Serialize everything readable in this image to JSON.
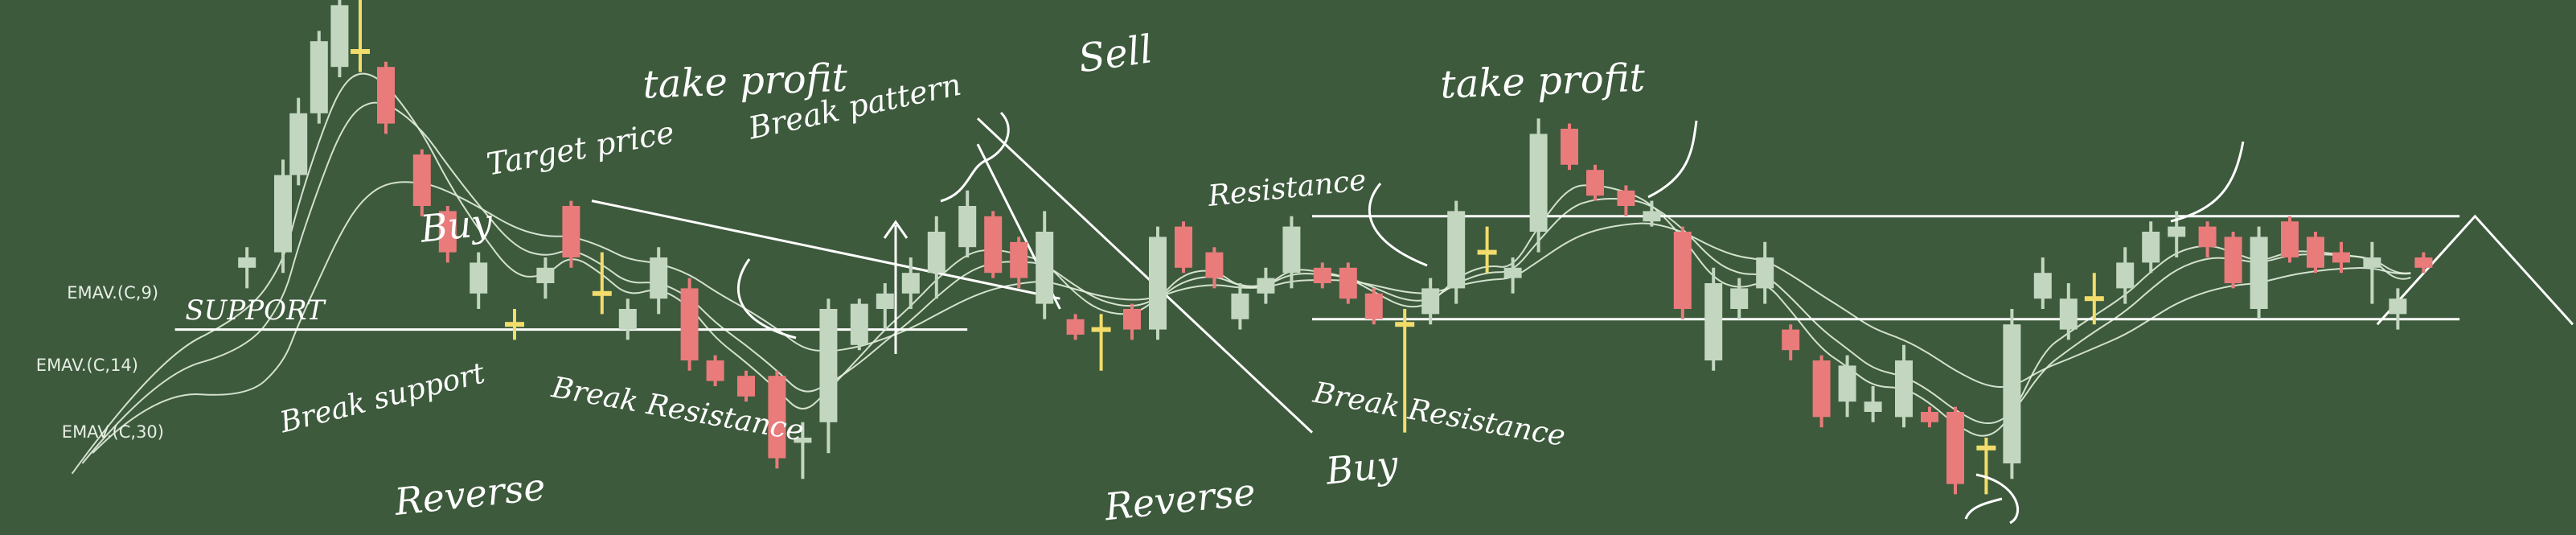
{
  "chart_data": {
    "type": "candlestick",
    "title": "",
    "xlabel": "",
    "ylabel": "",
    "grid": false,
    "ylim": [
      0,
      100
    ],
    "colors": {
      "background": "#3d5a3c",
      "up": "#c2d6c0",
      "down": "#e97b7b",
      "doji": "#f2dc6b",
      "line": "#ffffff",
      "ema": "#e3f0de"
    },
    "candles": [
      {
        "x": 48,
        "o": 48,
        "h": 52,
        "l": 44,
        "c": 50,
        "t": "up"
      },
      {
        "x": 55,
        "o": 51,
        "h": 69,
        "l": 47,
        "c": 66,
        "t": "up"
      },
      {
        "x": 58,
        "o": 66,
        "h": 81,
        "l": 64,
        "c": 78,
        "t": "up"
      },
      {
        "x": 62,
        "o": 78,
        "h": 94,
        "l": 76,
        "c": 92,
        "t": "up"
      },
      {
        "x": 66,
        "o": 87,
        "h": 100,
        "l": 85,
        "c": 99,
        "t": "up"
      },
      {
        "x": 70,
        "o": 90,
        "h": 100,
        "l": 86,
        "c": 90,
        "t": "doji"
      },
      {
        "x": 75,
        "o": 87,
        "h": 88,
        "l": 74,
        "c": 76,
        "t": "down"
      },
      {
        "x": 82,
        "o": 70,
        "h": 71,
        "l": 58,
        "c": 60,
        "t": "down"
      },
      {
        "x": 87,
        "o": 59,
        "h": 60,
        "l": 49,
        "c": 51,
        "t": "down"
      },
      {
        "x": 93,
        "o": 43,
        "h": 51,
        "l": 40,
        "c": 49,
        "t": "up"
      },
      {
        "x": 100,
        "o": 37,
        "h": 40,
        "l": 34,
        "c": 37,
        "t": "doji"
      },
      {
        "x": 106,
        "o": 45,
        "h": 50,
        "l": 42,
        "c": 48,
        "t": "up"
      },
      {
        "x": 111,
        "o": 60,
        "h": 61,
        "l": 48,
        "c": 50,
        "t": "down"
      },
      {
        "x": 117,
        "o": 43,
        "h": 51,
        "l": 39,
        "c": 43,
        "t": "doji"
      },
      {
        "x": 122,
        "o": 36,
        "h": 42,
        "l": 34,
        "c": 40,
        "t": "up"
      },
      {
        "x": 128,
        "o": 42,
        "h": 52,
        "l": 39,
        "c": 50,
        "t": "up"
      },
      {
        "x": 134,
        "o": 44,
        "h": 46,
        "l": 28,
        "c": 30,
        "t": "down"
      },
      {
        "x": 139,
        "o": 30,
        "h": 31,
        "l": 25,
        "c": 26,
        "t": "down"
      },
      {
        "x": 145,
        "o": 27,
        "h": 28,
        "l": 22,
        "c": 23,
        "t": "down"
      },
      {
        "x": 151,
        "o": 27,
        "h": 28,
        "l": 9,
        "c": 11,
        "t": "down"
      },
      {
        "x": 156,
        "o": 15,
        "h": 18,
        "l": 7,
        "c": 14,
        "t": "up"
      },
      {
        "x": 161,
        "o": 18,
        "h": 42,
        "l": 12,
        "c": 40,
        "t": "up"
      },
      {
        "x": 167,
        "o": 33,
        "h": 42,
        "l": 32,
        "c": 41,
        "t": "up"
      },
      {
        "x": 172,
        "o": 40,
        "h": 45,
        "l": 36,
        "c": 43,
        "t": "up"
      },
      {
        "x": 177,
        "o": 43,
        "h": 50,
        "l": 40,
        "c": 47,
        "t": "up"
      },
      {
        "x": 182,
        "o": 47,
        "h": 58,
        "l": 42,
        "c": 55,
        "t": "up"
      },
      {
        "x": 188,
        "o": 52,
        "h": 63,
        "l": 50,
        "c": 60,
        "t": "up"
      },
      {
        "x": 193,
        "o": 58,
        "h": 59,
        "l": 46,
        "c": 47,
        "t": "down"
      },
      {
        "x": 198,
        "o": 53,
        "h": 54,
        "l": 44,
        "c": 46,
        "t": "down"
      },
      {
        "x": 203,
        "o": 41,
        "h": 59,
        "l": 38,
        "c": 55,
        "t": "up"
      },
      {
        "x": 209,
        "o": 38,
        "h": 39,
        "l": 34,
        "c": 35,
        "t": "down"
      },
      {
        "x": 214,
        "o": 36,
        "h": 39,
        "l": 28,
        "c": 36,
        "t": "doji"
      },
      {
        "x": 220,
        "o": 40,
        "h": 41,
        "l": 34,
        "c": 36,
        "t": "down"
      },
      {
        "x": 225,
        "o": 36,
        "h": 56,
        "l": 34,
        "c": 54,
        "t": "up"
      },
      {
        "x": 230,
        "o": 56,
        "h": 57,
        "l": 47,
        "c": 48,
        "t": "down"
      },
      {
        "x": 236,
        "o": 51,
        "h": 52,
        "l": 44,
        "c": 46,
        "t": "down"
      },
      {
        "x": 241,
        "o": 38,
        "h": 45,
        "l": 36,
        "c": 43,
        "t": "up"
      },
      {
        "x": 246,
        "o": 43,
        "h": 48,
        "l": 41,
        "c": 46,
        "t": "up"
      },
      {
        "x": 251,
        "o": 47,
        "h": 58,
        "l": 44,
        "c": 56,
        "t": "up"
      },
      {
        "x": 257,
        "o": 48,
        "h": 49,
        "l": 44,
        "c": 45,
        "t": "down"
      },
      {
        "x": 262,
        "o": 48,
        "h": 49,
        "l": 41,
        "c": 42,
        "t": "down"
      },
      {
        "x": 267,
        "o": 43,
        "h": 44,
        "l": 37,
        "c": 38,
        "t": "down"
      },
      {
        "x": 273,
        "o": 37,
        "h": 40,
        "l": 16,
        "c": 37,
        "t": "doji"
      },
      {
        "x": 278,
        "o": 39,
        "h": 46,
        "l": 37,
        "c": 44,
        "t": "up"
      },
      {
        "x": 283,
        "o": 44,
        "h": 61,
        "l": 41,
        "c": 59,
        "t": "up"
      },
      {
        "x": 289,
        "o": 51,
        "h": 56,
        "l": 47,
        "c": 51,
        "t": "doji"
      },
      {
        "x": 294,
        "o": 46,
        "h": 50,
        "l": 43,
        "c": 48,
        "t": "up"
      },
      {
        "x": 299,
        "o": 55,
        "h": 77,
        "l": 51,
        "c": 74,
        "t": "up"
      },
      {
        "x": 305,
        "o": 75,
        "h": 76,
        "l": 67,
        "c": 68,
        "t": "down"
      },
      {
        "x": 310,
        "o": 67,
        "h": 68,
        "l": 61,
        "c": 62,
        "t": "down"
      },
      {
        "x": 316,
        "o": 63,
        "h": 64,
        "l": 58,
        "c": 60,
        "t": "down"
      },
      {
        "x": 321,
        "o": 59,
        "h": 61,
        "l": 56,
        "c": 57,
        "t": "up"
      },
      {
        "x": 327,
        "o": 55,
        "h": 56,
        "l": 38,
        "c": 40,
        "t": "down"
      },
      {
        "x": 333,
        "o": 30,
        "h": 48,
        "l": 28,
        "c": 45,
        "t": "up"
      },
      {
        "x": 338,
        "o": 40,
        "h": 46,
        "l": 38,
        "c": 44,
        "t": "up"
      },
      {
        "x": 343,
        "o": 44,
        "h": 53,
        "l": 41,
        "c": 50,
        "t": "up"
      },
      {
        "x": 348,
        "o": 36,
        "h": 37,
        "l": 30,
        "c": 32,
        "t": "down"
      },
      {
        "x": 354,
        "o": 30,
        "h": 31,
        "l": 17,
        "c": 19,
        "t": "down"
      },
      {
        "x": 359,
        "o": 22,
        "h": 31,
        "l": 19,
        "c": 29,
        "t": "up"
      },
      {
        "x": 364,
        "o": 20,
        "h": 25,
        "l": 18,
        "c": 22,
        "t": "up"
      },
      {
        "x": 370,
        "o": 19,
        "h": 33,
        "l": 17,
        "c": 30,
        "t": "up"
      },
      {
        "x": 375,
        "o": 20,
        "h": 21,
        "l": 17,
        "c": 18,
        "t": "down"
      },
      {
        "x": 380,
        "o": 20,
        "h": 21,
        "l": 4,
        "c": 6,
        "t": "down"
      },
      {
        "x": 386,
        "o": 13,
        "h": 15,
        "l": 4,
        "c": 10,
        "t": "doji"
      },
      {
        "x": 391,
        "o": 10,
        "h": 40,
        "l": 7,
        "c": 37,
        "t": "up"
      },
      {
        "x": 397,
        "o": 42,
        "h": 50,
        "l": 40,
        "c": 47,
        "t": "up"
      },
      {
        "x": 402,
        "o": 36,
        "h": 45,
        "l": 34,
        "c": 42,
        "t": "up"
      },
      {
        "x": 407,
        "o": 42,
        "h": 47,
        "l": 37,
        "c": 42,
        "t": "doji"
      },
      {
        "x": 413,
        "o": 44,
        "h": 52,
        "l": 41,
        "c": 49,
        "t": "up"
      },
      {
        "x": 418,
        "o": 49,
        "h": 57,
        "l": 47,
        "c": 55,
        "t": "up"
      },
      {
        "x": 423,
        "o": 54,
        "h": 59,
        "l": 50,
        "c": 56,
        "t": "up"
      },
      {
        "x": 429,
        "o": 56,
        "h": 57,
        "l": 50,
        "c": 52,
        "t": "down"
      },
      {
        "x": 434,
        "o": 54,
        "h": 55,
        "l": 44,
        "c": 45,
        "t": "down"
      },
      {
        "x": 439,
        "o": 40,
        "h": 56,
        "l": 38,
        "c": 54,
        "t": "up"
      },
      {
        "x": 445,
        "o": 57,
        "h": 58,
        "l": 49,
        "c": 50,
        "t": "down"
      },
      {
        "x": 450,
        "o": 54,
        "h": 55,
        "l": 47,
        "c": 48,
        "t": "down"
      },
      {
        "x": 455,
        "o": 51,
        "h": 53,
        "l": 47,
        "c": 49,
        "t": "down"
      },
      {
        "x": 461,
        "o": 48,
        "h": 53,
        "l": 41,
        "c": 50,
        "t": "up"
      },
      {
        "x": 466,
        "o": 42,
        "h": 44,
        "l": 36,
        "c": 39,
        "t": "up"
      },
      {
        "x": 471,
        "o": 50,
        "h": 51,
        "l": 47,
        "c": 48,
        "t": "down"
      }
    ],
    "support_line": {
      "label": "SUPPORT",
      "x": [
        34,
        188
      ],
      "y": 36
    },
    "resistance_box": {
      "label": "Resistance",
      "x": [
        255,
        478
      ],
      "y_top": 58,
      "y_bottom": 38
    },
    "trendlines": [
      {
        "name": "target-trend",
        "points": [
          [
            115,
            61
          ],
          [
            206,
            42
          ]
        ]
      },
      {
        "name": "sell-trend-a",
        "points": [
          [
            190,
            77
          ],
          [
            255,
            16
          ]
        ]
      },
      {
        "name": "sell-trend-b",
        "points": [
          [
            190,
            72
          ],
          [
            206,
            40
          ]
        ]
      },
      {
        "name": "triangle",
        "points": [
          [
            462,
            37
          ],
          [
            481,
            58
          ],
          [
            500,
            37
          ]
        ]
      }
    ],
    "ema_series": [
      {
        "name": "EMAV.(C,9)"
      },
      {
        "name": "EMAV.(C,14)"
      },
      {
        "name": "EMAV.(C,30)"
      }
    ],
    "annotations": [
      {
        "text": "take profit",
        "x": 125,
        "y": 81,
        "size": 48
      },
      {
        "text": "Target price",
        "x": 95,
        "y": 66,
        "size": 38
      },
      {
        "text": "Break pattern",
        "x": 146,
        "y": 73,
        "size": 38
      },
      {
        "text": "Sell",
        "x": 210,
        "y": 86,
        "size": 48
      },
      {
        "text": "take profit",
        "x": 280,
        "y": 81,
        "size": 48
      },
      {
        "text": "Resistance",
        "x": 235,
        "y": 60,
        "size": 36
      },
      {
        "text": "Buy",
        "x": 82,
        "y": 53,
        "size": 46
      },
      {
        "text": "Break support",
        "x": 55,
        "y": 16,
        "size": 36
      },
      {
        "text": "Break Resistance",
        "x": 107,
        "y": 23,
        "size": 36
      },
      {
        "text": "Reverse",
        "x": 77,
        "y": 0,
        "size": 46
      },
      {
        "text": "Break Resistance",
        "x": 255,
        "y": 22,
        "size": 36
      },
      {
        "text": "Reverse",
        "x": 215,
        "y": -1,
        "size": 46
      },
      {
        "text": "Buy",
        "x": 258,
        "y": 6,
        "size": 46
      },
      {
        "text": "SUPPORT",
        "x": 36,
        "y": 38,
        "size": 34
      }
    ],
    "ema_labels": [
      {
        "text": "EMAV.(C,9)",
        "x": 13,
        "y": 42
      },
      {
        "text": "EMAV.(C,14)",
        "x": 7,
        "y": 28
      },
      {
        "text": "EMAV.(C,30)",
        "x": 12,
        "y": 15
      }
    ]
  }
}
